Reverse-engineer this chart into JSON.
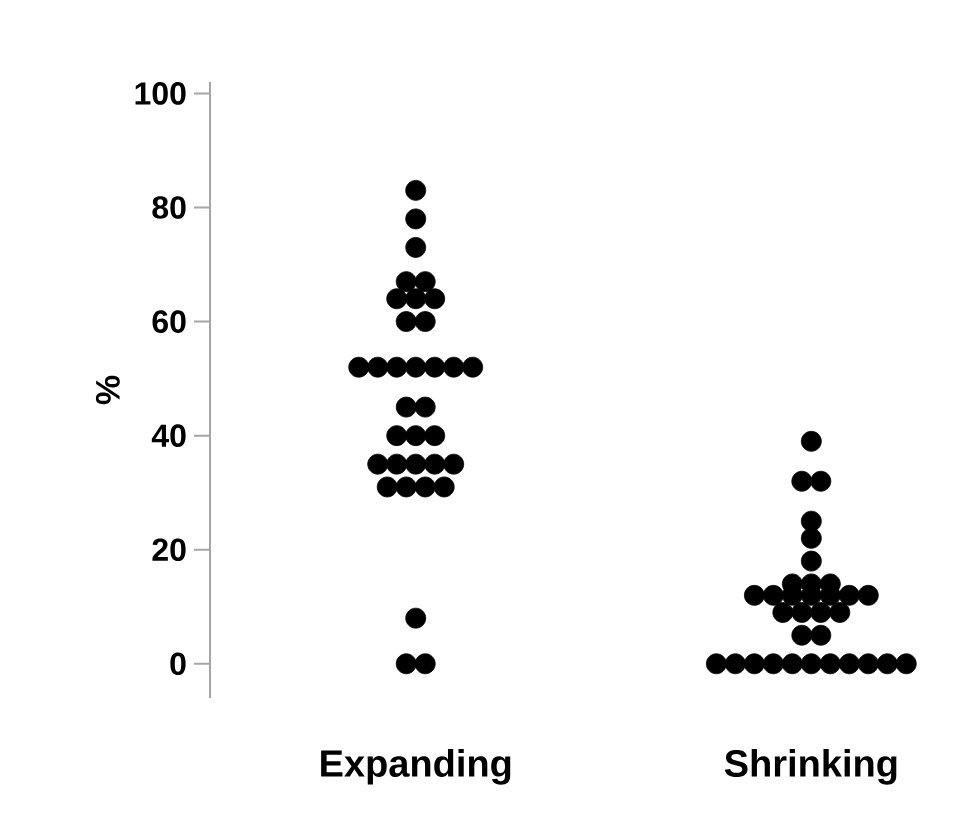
{
  "chart_data": {
    "type": "scatter",
    "ylabel": "%",
    "categories": [
      "Expanding",
      "Shrinking"
    ],
    "ylim": [
      -6,
      102
    ],
    "yticks": [
      0,
      20,
      40,
      60,
      80,
      100
    ],
    "grid": false,
    "series": [
      {
        "color": "#000000",
        "x": [
          "Expanding",
          "Expanding",
          "Expanding",
          "Expanding",
          "Expanding",
          "Expanding",
          "Expanding",
          "Expanding",
          "Expanding",
          "Expanding",
          "Expanding",
          "Expanding",
          "Expanding",
          "Expanding",
          "Expanding",
          "Expanding",
          "Expanding",
          "Expanding",
          "Expanding",
          "Expanding",
          "Expanding",
          "Expanding",
          "Expanding",
          "Expanding",
          "Expanding",
          "Expanding",
          "Expanding",
          "Expanding",
          "Expanding",
          "Expanding",
          "Expanding",
          "Expanding",
          "Expanding",
          "Expanding"
        ],
        "values": [
          83,
          78,
          73,
          67,
          67,
          64,
          64,
          64,
          60,
          60,
          52,
          52,
          52,
          52,
          52,
          52,
          52,
          45,
          45,
          40,
          40,
          40,
          35,
          35,
          35,
          35,
          35,
          31,
          31,
          31,
          31,
          8,
          0,
          0
        ]
      },
      {
        "color": "#000000",
        "x": [
          "Shrinking",
          "Shrinking",
          "Shrinking",
          "Shrinking",
          "Shrinking",
          "Shrinking",
          "Shrinking",
          "Shrinking",
          "Shrinking",
          "Shrinking",
          "Shrinking",
          "Shrinking",
          "Shrinking",
          "Shrinking",
          "Shrinking",
          "Shrinking",
          "Shrinking",
          "Shrinking",
          "Shrinking",
          "Shrinking",
          "Shrinking",
          "Shrinking",
          "Shrinking",
          "Shrinking",
          "Shrinking",
          "Shrinking",
          "Shrinking",
          "Shrinking",
          "Shrinking",
          "Shrinking",
          "Shrinking",
          "Shrinking",
          "Shrinking"
        ],
        "values": [
          39,
          32,
          32,
          25,
          22,
          18,
          14,
          14,
          14,
          12,
          12,
          12,
          12,
          12,
          12,
          12,
          9,
          9,
          9,
          9,
          5,
          5,
          0,
          0,
          0,
          0,
          0,
          0,
          0,
          0,
          0,
          0,
          0
        ]
      }
    ]
  }
}
